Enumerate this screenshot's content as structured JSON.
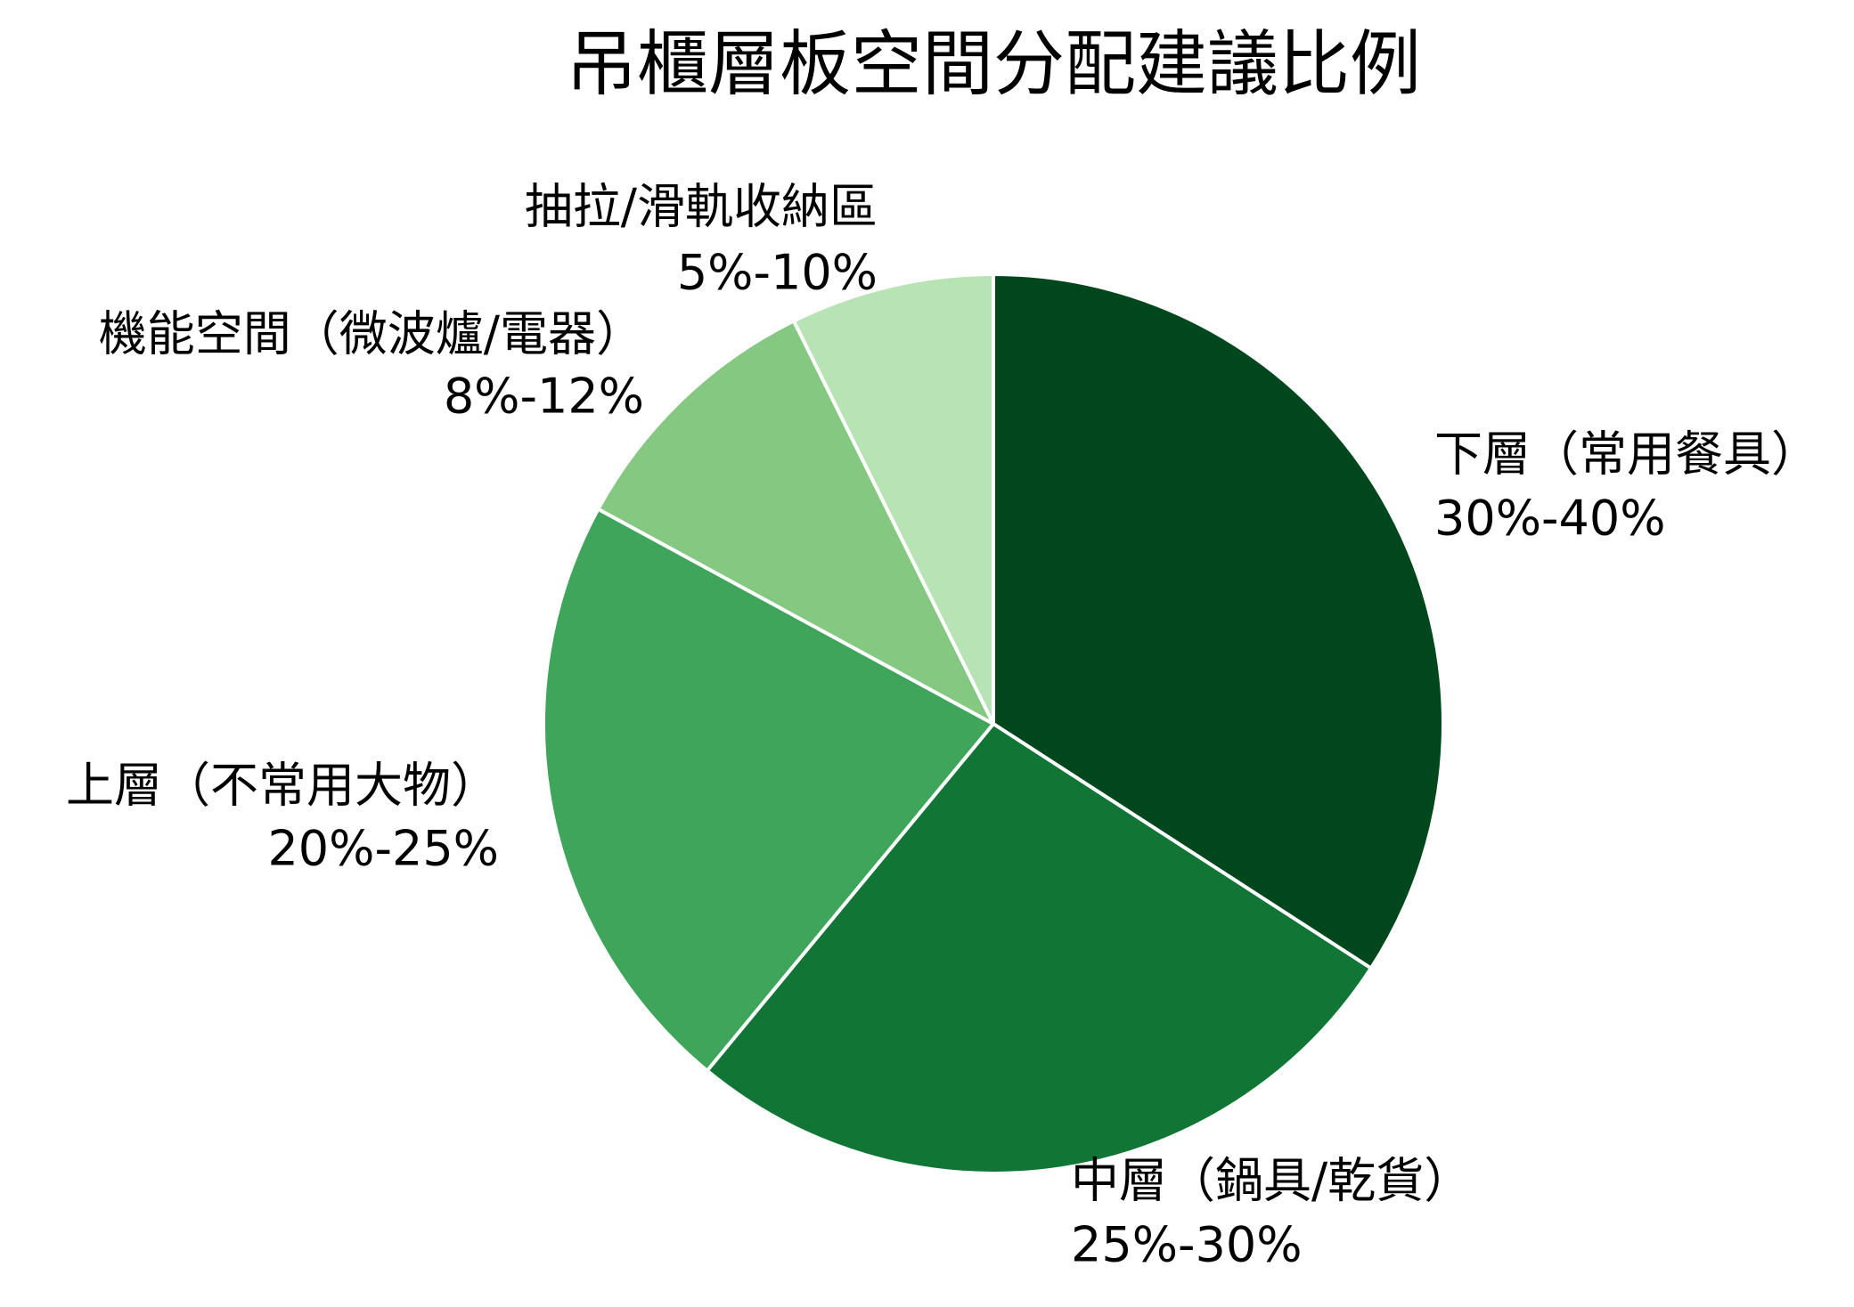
{
  "chart_data": {
    "type": "pie",
    "title": "吊櫃層板空間分配建議比例",
    "labels": [
      "下層（常用餐具）",
      "中層（鍋具/乾貨）",
      "上層（不常用大物）",
      "機能空間（微波爐/電器）",
      "抽拉/滑軌收納區"
    ],
    "ranges": [
      "30%-40%",
      "25%-30%",
      "20%-25%",
      "8%-12%",
      "5%-10%"
    ],
    "values": [
      35,
      27.5,
      22.5,
      10,
      7.5
    ],
    "colors": [
      "#00471d",
      "#107535",
      "#3fa55b",
      "#84c881",
      "#b8e3b4"
    ]
  }
}
